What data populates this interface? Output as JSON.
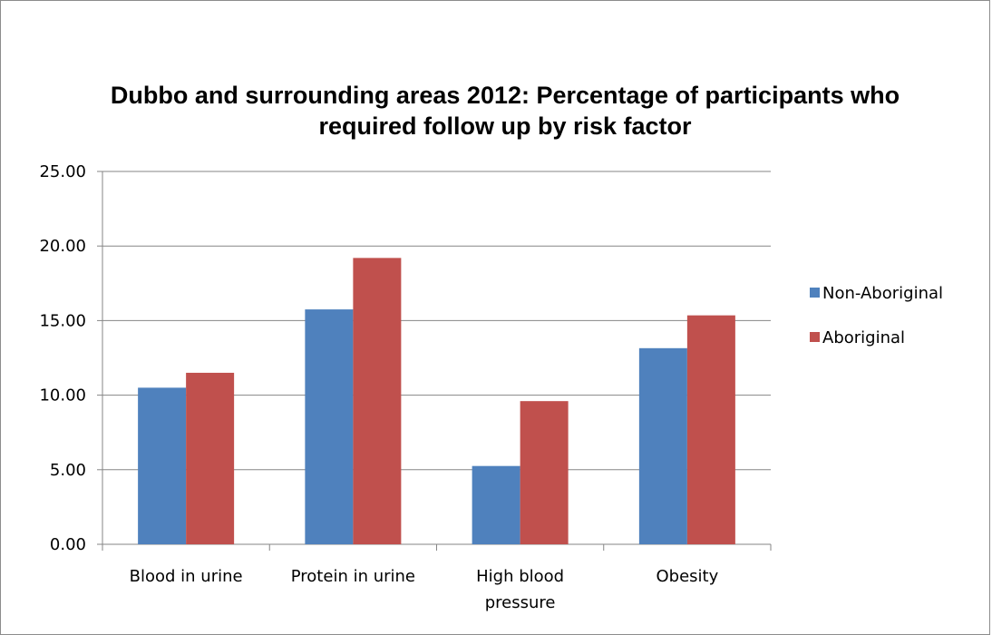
{
  "chart_data": {
    "type": "bar",
    "title_lines": [
      "Dubbo and surrounding areas 2012: Percentage of participants who",
      "required follow up by risk factor"
    ],
    "categories": [
      [
        "Blood in urine"
      ],
      [
        "Protein in urine"
      ],
      [
        "High blood",
        "pressure"
      ],
      [
        "Obesity"
      ]
    ],
    "series": [
      {
        "name": "Non-Aboriginal",
        "color": "#4f81bd",
        "values": [
          10.5,
          15.75,
          5.25,
          13.15
        ]
      },
      {
        "name": "Aboriginal",
        "color": "#c0504d",
        "values": [
          11.5,
          19.2,
          9.6,
          15.35
        ]
      }
    ],
    "ylim": [
      0,
      25
    ],
    "yticks": [
      "0.00",
      "5.00",
      "10.00",
      "15.00",
      "20.00",
      "25.00"
    ],
    "grid": true,
    "legend_position": "right"
  }
}
